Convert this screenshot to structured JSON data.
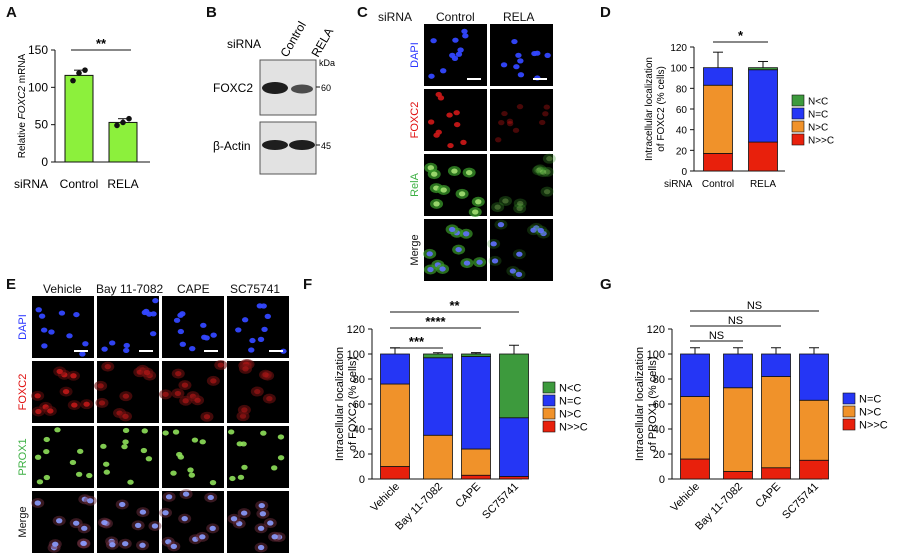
{
  "panels": {
    "A": {
      "letter": "A"
    },
    "B": {
      "letter": "B",
      "sirna_label": "siRNA",
      "lanes": [
        "Control",
        "RELA"
      ],
      "kda_label": "kDa",
      "bands": [
        {
          "label": "FOXC2",
          "kda": "60"
        },
        {
          "label": "β-Actin",
          "kda": "45"
        }
      ]
    },
    "C": {
      "letter": "C",
      "sirna_label": "siRNA",
      "columns": [
        "Control",
        "RELA"
      ],
      "rows": [
        {
          "label": "DAPI",
          "color": "#2a35ff"
        },
        {
          "label": "FOXC2",
          "color": "#e01010"
        },
        {
          "label": "RelA",
          "color": "#3cb043"
        },
        {
          "label": "Merge",
          "color": "#111111"
        }
      ]
    },
    "D": {
      "letter": "D"
    },
    "E": {
      "letter": "E",
      "columns": [
        "Vehicle",
        "Bay 11-7082",
        "CAPE",
        "SC75741"
      ],
      "rows": [
        {
          "label": "DAPI",
          "color": "#2a35ff"
        },
        {
          "label": "FOXC2",
          "color": "#e01010"
        },
        {
          "label": "PROX1",
          "color": "#3cb043"
        },
        {
          "label": "Merge",
          "color": "#111111"
        }
      ]
    },
    "F": {
      "letter": "F"
    },
    "G": {
      "letter": "G"
    }
  },
  "chart_data": [
    {
      "panel": "A",
      "type": "bar",
      "ylabel_prefix": "Relative ",
      "ylabel_italic": "FOXC2",
      "ylabel_suffix": " mRNA",
      "xprefix": "siRNA",
      "categories": [
        "Control",
        "RELA"
      ],
      "values": [
        116,
        53
      ],
      "errors": [
        7,
        5
      ],
      "points": [
        [
          109,
          119,
          123
        ],
        [
          49,
          53,
          58
        ]
      ],
      "ylim": [
        0,
        150
      ],
      "yticks": [
        0,
        50,
        100,
        150
      ],
      "bar_color": "#8cf03c",
      "significance": [
        {
          "from": 0,
          "to": 1,
          "label": "**"
        }
      ]
    },
    {
      "panel": "D",
      "type": "stacked-bar",
      "ylabel": [
        "Intracellular localization",
        "of FOXC2 (% cells)"
      ],
      "xprefix": "siRNA",
      "categories": [
        "Control",
        "RELA"
      ],
      "series": [
        {
          "name": "N>>C",
          "color": "#e8200c",
          "values": [
            17,
            28
          ],
          "errors": [
            7,
            12
          ]
        },
        {
          "name": "N>C",
          "color": "#f0922a",
          "values": [
            66,
            0
          ],
          "errors": [
            12,
            0
          ]
        },
        {
          "name": "N=C",
          "color": "#2536f5",
          "values": [
            17,
            70
          ],
          "errors": [
            15,
            8
          ]
        },
        {
          "name": "N<C",
          "color": "#3d9a3d",
          "values": [
            0,
            2
          ],
          "errors": [
            0,
            0
          ]
        }
      ],
      "ylim": [
        0,
        120
      ],
      "yticks": [
        0,
        20,
        40,
        60,
        80,
        100,
        120
      ],
      "legend": [
        "N<C",
        "N=C",
        "N>C",
        "N>>C"
      ],
      "significance": [
        {
          "from": 0,
          "to": 1,
          "label": "*"
        }
      ]
    },
    {
      "panel": "F",
      "type": "stacked-bar",
      "ylabel": [
        "Intracellular localization",
        "of FOXC2 (% cells)"
      ],
      "categories": [
        "Vehicle",
        "Bay 11-7082",
        "CAPE",
        "SC75741"
      ],
      "series": [
        {
          "name": "N>>C",
          "color": "#e8200c",
          "values": [
            10,
            0,
            3,
            2
          ],
          "errors": [
            7,
            0,
            2,
            0
          ]
        },
        {
          "name": "N>C",
          "color": "#f0922a",
          "values": [
            66,
            35,
            21,
            0
          ],
          "errors": [
            8,
            4,
            5,
            0
          ]
        },
        {
          "name": "N=C",
          "color": "#2536f5",
          "values": [
            24,
            62,
            74,
            47
          ],
          "errors": [
            5,
            2,
            3,
            8
          ]
        },
        {
          "name": "N<C",
          "color": "#3d9a3d",
          "values": [
            0,
            3,
            2,
            51
          ],
          "errors": [
            0,
            1,
            1,
            7
          ]
        }
      ],
      "ylim": [
        0,
        120
      ],
      "yticks": [
        0,
        20,
        40,
        60,
        80,
        100,
        120
      ],
      "legend": [
        "N<C",
        "N=C",
        "N>C",
        "N>>C"
      ],
      "significance": [
        {
          "from": 0,
          "to": 1,
          "label": "***"
        },
        {
          "from": 0,
          "to": 2,
          "label": "****"
        },
        {
          "from": 0,
          "to": 3,
          "label": "**"
        }
      ]
    },
    {
      "panel": "G",
      "type": "stacked-bar",
      "ylabel": [
        "Intracellular localization",
        "of PROX1 (% cells)"
      ],
      "categories": [
        "Vehicle",
        "Bay 11-7082",
        "CAPE",
        "SC75741"
      ],
      "series": [
        {
          "name": "N>>C",
          "color": "#e8200c",
          "values": [
            16,
            6,
            9,
            15
          ],
          "errors": [
            4,
            3,
            3,
            3
          ]
        },
        {
          "name": "N>C",
          "color": "#f0922a",
          "values": [
            50,
            67,
            73,
            48
          ],
          "errors": [
            2,
            3,
            6,
            3
          ]
        },
        {
          "name": "N=C",
          "color": "#2536f5",
          "values": [
            34,
            27,
            18,
            37
          ],
          "errors": [
            5,
            5,
            5,
            5
          ]
        }
      ],
      "ylim": [
        0,
        120
      ],
      "yticks": [
        0,
        20,
        40,
        60,
        80,
        100,
        120
      ],
      "legend": [
        "N=C",
        "N>C",
        "N>>C"
      ],
      "significance": [
        {
          "from": 0,
          "to": 1,
          "label": "NS"
        },
        {
          "from": 0,
          "to": 2,
          "label": "NS"
        },
        {
          "from": 0,
          "to": 3,
          "label": "NS"
        }
      ]
    }
  ]
}
